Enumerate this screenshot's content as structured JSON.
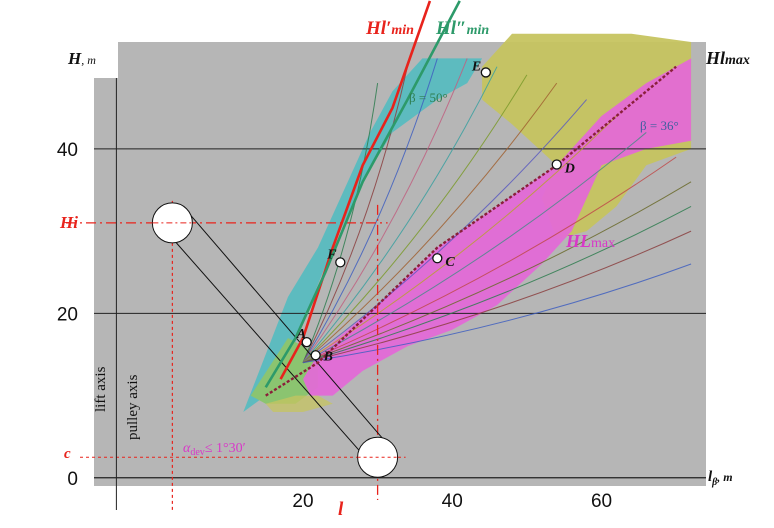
{
  "chart_data": {
    "type": "line",
    "axes": {
      "xlabel_main": "l",
      "xlabel_sub": "β",
      "xlabel_unit": ", m",
      "ylabel_main": "H",
      "ylabel_unit": ", m",
      "xlim": [
        -8,
        74
      ],
      "ylim": [
        -1,
        53
      ],
      "x_ticks": [
        20,
        40,
        60
      ],
      "y_ticks": [
        0,
        20,
        40
      ],
      "x_tick_labels": [
        "20",
        "40",
        "60"
      ],
      "y_tick_labels": [
        "0",
        "20",
        "40"
      ],
      "grid_y": [
        20,
        40
      ],
      "grid": "horizontal lines at 20 and 40"
    },
    "series": [
      {
        "name": "Hl'min",
        "label_main": "Hl′",
        "label_sub": "min",
        "color": "#e8231c",
        "x": [
          17,
          20,
          24,
          28,
          32,
          37
        ],
        "y": [
          12,
          17,
          28,
          38,
          45,
          58
        ]
      },
      {
        "name": "Hl''min",
        "label_main": "Hl″",
        "label_sub": "min",
        "color": "#2d9a6a",
        "x": [
          15,
          19,
          23,
          28,
          34,
          41
        ],
        "y": [
          11,
          17,
          25,
          36,
          46,
          58
        ]
      },
      {
        "name": "Hlmax",
        "label_main": "Hl",
        "label_sub": "max",
        "color": "#8a1f3a",
        "x": [
          15,
          22,
          30,
          38,
          46,
          54,
          62,
          70
        ],
        "y": [
          10,
          14,
          21,
          28,
          33,
          38,
          44,
          50
        ]
      }
    ],
    "beta_curves": {
      "note": "family of lines for constant β",
      "colors": [
        "#2e7d4f",
        "#8b3f3f",
        "#3f5fc0",
        "#c06080",
        "#3aa0a0",
        "#7a9a2a",
        "#a06030",
        "#5a5ac0",
        "#b8a030",
        "#4a8a8a",
        "#c04a4a",
        "#6a6a2a"
      ],
      "start": [
        20,
        14
      ],
      "end_points": [
        [
          30,
          48
        ],
        [
          34,
          50
        ],
        [
          38,
          51
        ],
        [
          42,
          51
        ],
        [
          46,
          50
        ],
        [
          50,
          49
        ],
        [
          54,
          48
        ],
        [
          58,
          46
        ],
        [
          62,
          44
        ],
        [
          66,
          42
        ],
        [
          70,
          39
        ],
        [
          72,
          36
        ],
        [
          72,
          33
        ],
        [
          72,
          30
        ],
        [
          72,
          26
        ]
      ]
    },
    "points": [
      {
        "label": "A",
        "x": 20.5,
        "y": 16.5
      },
      {
        "label": "B",
        "x": 21.7,
        "y": 14.9
      },
      {
        "label": "C",
        "x": 38.0,
        "y": 26.7
      },
      {
        "label": "D",
        "x": 54.0,
        "y": 38.1
      },
      {
        "label": "E",
        "x": 44.5,
        "y": 49.3
      },
      {
        "label": "F",
        "x": 25.0,
        "y": 26.2
      }
    ],
    "annotations": {
      "beta_left": "β = 50°",
      "beta_right": "β = 36°",
      "hl_max": "HL",
      "hl_max_sub": "max",
      "hi_label": "Hi",
      "c_label": "c",
      "l_label": "l",
      "hi_value": 31.0,
      "c_value": 2.5,
      "l_value": 30.0,
      "alpha_label": "α",
      "alpha_sub": "dev",
      "alpha_value": "≤ 1°30′",
      "lift_axis": "lift axis",
      "pulley_axis": "pulley axis",
      "lift_axis_x": -5,
      "pulley_axis_x": 2.5
    },
    "regions": {
      "cyan_color": "#58bcc0",
      "pink_color": "#e468d8",
      "olive_color": "#c6c460",
      "green_color": "#8bc470",
      "background": "#b6b6b6"
    }
  }
}
